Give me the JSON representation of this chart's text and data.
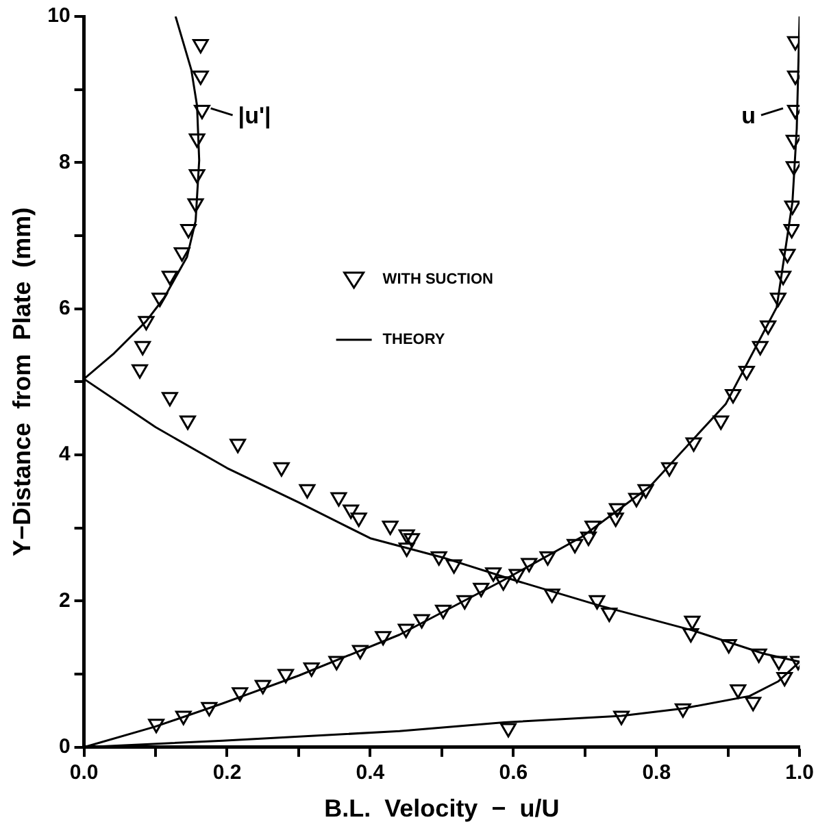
{
  "chart_data": {
    "type": "scatter",
    "xlabel": "B.L.  Velocity  −  u/U",
    "ylabel": "Y−Distance  from  Plate  (mm)",
    "xlim": [
      0,
      1
    ],
    "ylim": [
      0,
      10
    ],
    "xticks": [
      {
        "value": 0,
        "label": "0.0"
      },
      {
        "value": 0.1,
        "label": null
      },
      {
        "value": 0.2,
        "label": "0.2"
      },
      {
        "value": 0.3,
        "label": null
      },
      {
        "value": 0.4,
        "label": "0.4"
      },
      {
        "value": 0.5,
        "label": null
      },
      {
        "value": 0.6,
        "label": "0.6"
      },
      {
        "value": 0.7,
        "label": null
      },
      {
        "value": 0.8,
        "label": "0.8"
      },
      {
        "value": 0.9,
        "label": null
      },
      {
        "value": 1,
        "label": "1.0"
      }
    ],
    "yticks": [
      0,
      {
        "value": 1,
        "label": null
      },
      2,
      {
        "value": 3,
        "label": null
      },
      4,
      {
        "value": 5,
        "label": null
      },
      6,
      {
        "value": 7,
        "label": null
      },
      8,
      {
        "value": 9,
        "label": null
      },
      10
    ],
    "grid": false,
    "legend": "top",
    "series": [
      {
        "name": "WITH SUCTION",
        "marker": "triangle",
        "color": "#000000",
        "x": [
          0.101,
          0.139,
          0.175,
          0.218,
          0.25,
          0.282,
          0.318,
          0.353,
          0.386,
          0.418,
          0.45,
          0.472,
          0.502,
          0.532,
          0.555,
          0.605,
          0.622,
          0.648,
          0.686,
          0.705,
          0.711,
          0.743,
          0.745,
          0.772,
          0.785,
          0.818,
          0.852,
          0.89,
          0.907,
          0.926,
          0.945,
          0.956,
          0.97,
          0.977,
          0.983,
          0.989,
          0.99,
          0.992,
          0.992,
          0.994,
          0.994,
          0.994
        ],
        "values": [
          0.32,
          0.43,
          0.55,
          0.75,
          0.85,
          1.0,
          1.09,
          1.18,
          1.33,
          1.52,
          1.62,
          1.75,
          1.88,
          2.01,
          2.18,
          2.37,
          2.52,
          2.61,
          2.78,
          2.88,
          3.03,
          3.14,
          3.27,
          3.41,
          3.53,
          3.83,
          4.17,
          4.47,
          4.83,
          5.15,
          5.49,
          5.77,
          6.15,
          6.45,
          6.75,
          7.09,
          7.41,
          7.95,
          8.31,
          8.72,
          9.19,
          9.66
        ]
      },
      {
        "marker": "triangle",
        "color": "#000000",
        "x": [
          0.593,
          0.751,
          0.837,
          0.935,
          0.914,
          0.979,
          0.998,
          0.971,
          0.943,
          0.901,
          0.848,
          0.85,
          0.734,
          0.717,
          0.654,
          0.586,
          0.572,
          0.517,
          0.496,
          0.458,
          0.451,
          0.451,
          0.428,
          0.384,
          0.373,
          0.356,
          0.312,
          0.276,
          0.215,
          0.145,
          0.12,
          0.078,
          0.082,
          0.087,
          0.106,
          0.12,
          0.137,
          0.146,
          0.156,
          0.158,
          0.158,
          0.165,
          0.163,
          0.163
        ],
        "values": [
          0.26,
          0.43,
          0.53,
          0.62,
          0.79,
          0.96,
          1.18,
          1.18,
          1.28,
          1.41,
          1.56,
          1.73,
          1.84,
          2.01,
          2.1,
          2.27,
          2.39,
          2.5,
          2.61,
          2.86,
          2.73,
          2.91,
          3.03,
          3.14,
          3.25,
          3.42,
          3.53,
          3.83,
          4.15,
          4.47,
          4.79,
          5.17,
          5.49,
          5.83,
          6.15,
          6.45,
          6.77,
          7.09,
          7.44,
          7.84,
          8.33,
          8.72,
          9.19,
          9.62
        ]
      },
      {
        "name": "THEORY",
        "type": "line",
        "color": "#000000",
        "x": [
          0,
          0.099,
          0.194,
          0.3,
          0.441,
          0.587,
          0.696,
          0.791,
          0.897,
          0.968,
          0.99,
          0.996,
          1.0
        ],
        "values": [
          0,
          0.28,
          0.6,
          0.98,
          1.54,
          2.29,
          2.88,
          3.57,
          4.7,
          6.02,
          7.46,
          8.46,
          10
        ]
      },
      {
        "type": "line",
        "color": "#000000",
        "x": [
          0,
          0.194,
          0.441,
          0.587,
          0.751,
          0.837,
          0.93,
          0.97,
          1.0,
          0.95,
          0.85,
          0.72,
          0.6,
          0.5,
          0.4,
          0.3,
          0.2,
          0.1,
          0,
          0.042,
          0.087,
          0.112,
          0.144,
          0.156,
          0.161,
          0.158,
          0.15,
          0.128
        ],
        "values": [
          0,
          0.09,
          0.22,
          0.34,
          0.43,
          0.53,
          0.7,
          0.9,
          1.17,
          1.28,
          1.6,
          1.94,
          2.29,
          2.6,
          2.86,
          3.35,
          3.82,
          4.38,
          5.04,
          5.39,
          5.83,
          6.15,
          6.71,
          7.2,
          8.03,
          8.78,
          9.27,
          10
        ]
      }
    ],
    "annotations": [
      {
        "text": "|u'|",
        "x": 0.158,
        "y": 8.78
      },
      {
        "text": "u",
        "x": 0.996,
        "y": 8.78
      }
    ]
  }
}
